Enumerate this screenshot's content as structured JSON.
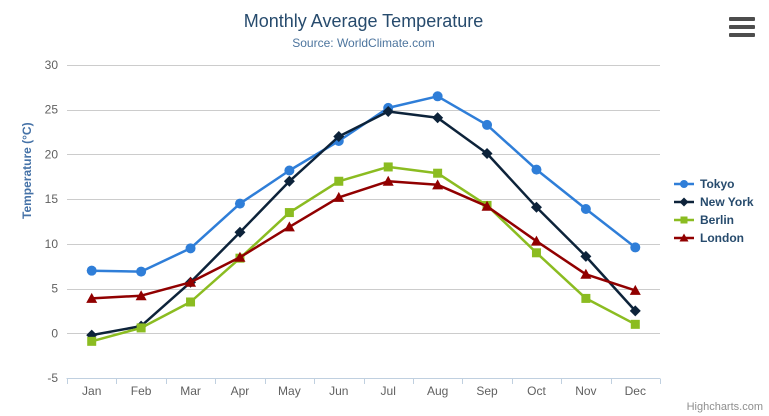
{
  "credits": "Highcharts.com",
  "export_menu": {
    "icon": "hamburger-menu-icon"
  },
  "chart_data": {
    "type": "line",
    "title": "Monthly Average Temperature",
    "subtitle": "Source: WorldClimate.com",
    "xlabel": "",
    "ylabel": "Temperature (°C)",
    "ylim": [
      -5,
      30
    ],
    "yticks": [
      -5,
      0,
      5,
      10,
      15,
      20,
      25,
      30
    ],
    "grid": true,
    "legend_position": "right",
    "categories": [
      "Jan",
      "Feb",
      "Mar",
      "Apr",
      "May",
      "Jun",
      "Jul",
      "Aug",
      "Sep",
      "Oct",
      "Nov",
      "Dec"
    ],
    "series": [
      {
        "name": "Tokyo",
        "color": "#2f7ed8",
        "marker": "circle",
        "values": [
          7.0,
          6.9,
          9.5,
          14.5,
          18.2,
          21.5,
          25.2,
          26.5,
          23.3,
          18.3,
          13.9,
          9.6
        ]
      },
      {
        "name": "New York",
        "color": "#0d233a",
        "marker": "diamond",
        "values": [
          -0.2,
          0.8,
          5.7,
          11.3,
          17.0,
          22.0,
          24.8,
          24.1,
          20.1,
          14.1,
          8.6,
          2.5
        ]
      },
      {
        "name": "Berlin",
        "color": "#8bbc21",
        "marker": "square",
        "values": [
          -0.9,
          0.6,
          3.5,
          8.4,
          13.5,
          17.0,
          18.6,
          17.9,
          14.3,
          9.0,
          3.9,
          1.0
        ]
      },
      {
        "name": "London",
        "color": "#910000",
        "marker": "triangle-up",
        "values": [
          3.9,
          4.2,
          5.7,
          8.5,
          11.9,
          15.2,
          17.0,
          16.6,
          14.2,
          10.3,
          6.6,
          4.8
        ]
      }
    ],
    "axis_colors": {
      "grid_line": "#cccccc",
      "axis_line": "#c0d0e0",
      "tick_label": "#606060"
    }
  }
}
